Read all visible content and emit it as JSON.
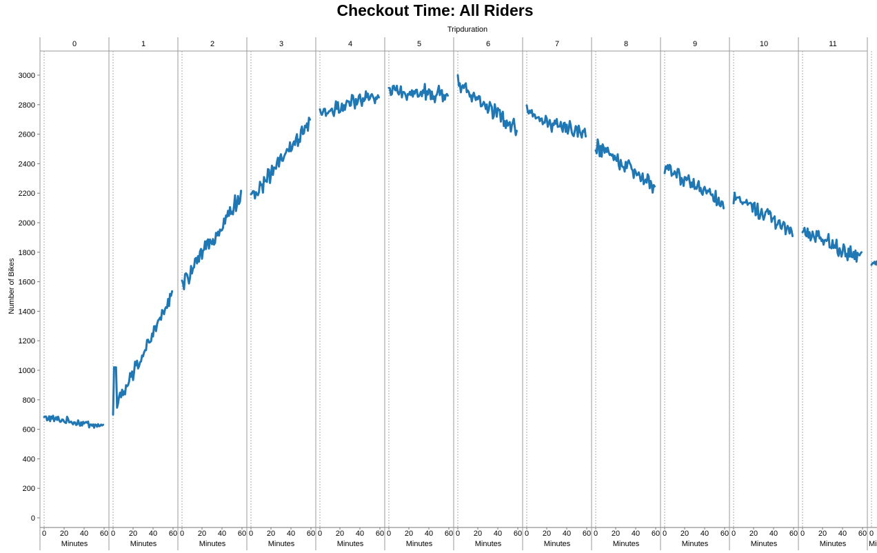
{
  "chart_data": {
    "type": "line",
    "title": "Checkout Time:  All Riders",
    "column_header": "Tripduration",
    "ylabel": "Number of Bikes",
    "xlabel": "Minutes",
    "ylim": [
      0,
      3100
    ],
    "yticks": [
      0,
      200,
      400,
      600,
      800,
      1000,
      1200,
      1400,
      1600,
      1800,
      2000,
      2200,
      2400,
      2600,
      2800,
      3000
    ],
    "xlim": [
      0,
      60
    ],
    "xticks": [
      0,
      20,
      40,
      60
    ],
    "grid": false,
    "line_color": "#1f77b4",
    "panels": [
      {
        "label": "0",
        "start": 680,
        "end": 620
      },
      {
        "label": "1",
        "start": 700,
        "end": 1510
      },
      {
        "label": "2",
        "start": 1570,
        "end": 2190
      },
      {
        "label": "3",
        "start": 2160,
        "end": 2670
      },
      {
        "label": "4",
        "start": 2740,
        "end": 2860
      },
      {
        "label": "5",
        "start": 2890,
        "end": 2870
      },
      {
        "label": "6",
        "start": 2940,
        "end": 2630
      },
      {
        "label": "7",
        "start": 2740,
        "end": 2590
      },
      {
        "label": "8",
        "start": 2530,
        "end": 2250
      },
      {
        "label": "9",
        "start": 2380,
        "end": 2140
      },
      {
        "label": "10",
        "start": 2180,
        "end": 1950
      },
      {
        "label": "11",
        "start": 1950,
        "end": 1750
      }
    ],
    "partial_panel": {
      "label": "Minutes",
      "start": 1720,
      "end": 1760
    }
  }
}
